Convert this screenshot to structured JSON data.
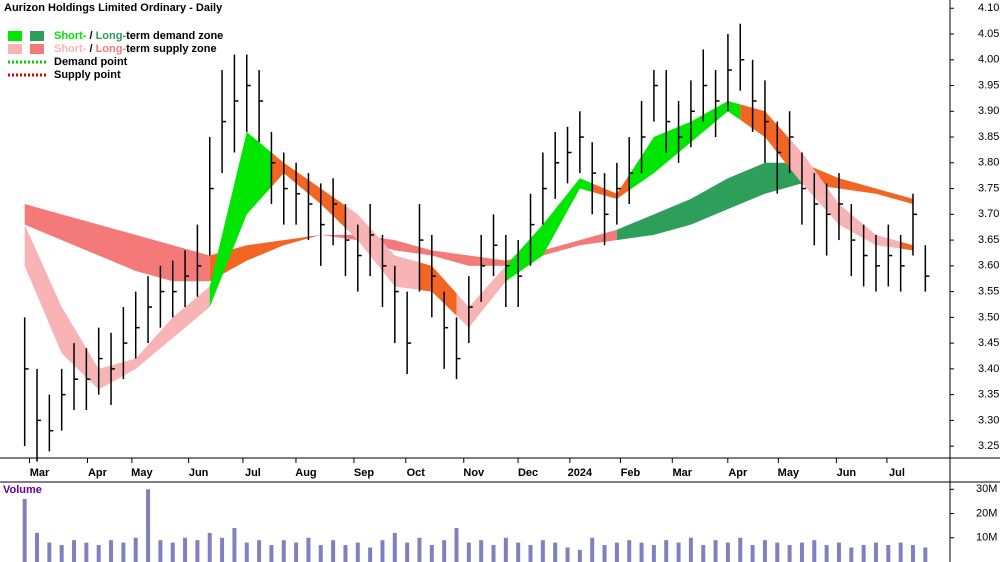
{
  "chart_data": {
    "type": "ohlc",
    "title": "Aurizon Holdings Limited Ordinary - Daily",
    "legend": [
      {
        "parts": [
          "Short-",
          " / ",
          "Long-",
          "term demand zone"
        ],
        "colors": [
          "#00e600",
          "#2e9e5b"
        ],
        "style": "box"
      },
      {
        "parts": [
          "Short-",
          " / ",
          "Long-",
          "term supply zone"
        ],
        "colors": [
          "#f8b4b4",
          "#f47a7a"
        ],
        "style": "box"
      },
      {
        "parts": [
          "Demand point"
        ],
        "colors": [
          "#00cc00"
        ],
        "style": "dots"
      },
      {
        "parts": [
          "Supply point"
        ],
        "colors": [
          "#dd0000"
        ],
        "style": "dots"
      }
    ],
    "xlim": [
      -2,
      75
    ],
    "xticks": [
      {
        "value": 1.2,
        "label": "Mar"
      },
      {
        "value": 5.9,
        "label": "Apr"
      },
      {
        "value": 9.5,
        "label": "May"
      },
      {
        "value": 14.1,
        "label": "Jun"
      },
      {
        "value": 18.5,
        "label": "Jul"
      },
      {
        "value": 22.8,
        "label": "Aug"
      },
      {
        "value": 27.5,
        "label": "Sep"
      },
      {
        "value": 31.7,
        "label": "Oct"
      },
      {
        "value": 36.4,
        "label": "Nov"
      },
      {
        "value": 40.8,
        "label": "Dec"
      },
      {
        "value": 45.0,
        "label": "2024"
      },
      {
        "value": 49.1,
        "label": "Feb"
      },
      {
        "value": 53.3,
        "label": "Mar"
      },
      {
        "value": 57.8,
        "label": "Apr"
      },
      {
        "value": 61.9,
        "label": "May"
      },
      {
        "value": 66.6,
        "label": "Jun"
      },
      {
        "value": 70.7,
        "label": "Jul"
      }
    ],
    "ylim": [
      3.227,
      4.116
    ],
    "yticks": [
      {
        "value": 4.1,
        "label": "4.10"
      },
      4.05,
      {
        "value": 4.0,
        "label": "4.00"
      },
      3.95,
      {
        "value": 3.9,
        "label": "3.90"
      },
      3.85,
      {
        "value": 3.8,
        "label": "3.80"
      },
      3.75,
      {
        "value": 3.7,
        "label": "3.70"
      },
      3.65,
      {
        "value": 3.6,
        "label": "3.60"
      },
      3.55,
      {
        "value": 3.5,
        "label": "3.50"
      },
      3.45,
      {
        "value": 3.4,
        "label": "3.40"
      },
      3.35,
      {
        "value": 3.3,
        "label": "3.30"
      },
      3.25
    ],
    "bar_color": "#000000",
    "high": [
      3.5,
      3.4,
      3.35,
      3.4,
      3.45,
      3.44,
      3.48,
      3.47,
      3.52,
      3.55,
      3.58,
      3.6,
      3.61,
      3.63,
      3.68,
      3.85,
      3.98,
      4.01,
      4.01,
      3.98,
      3.86,
      3.82,
      3.8,
      3.78,
      3.76,
      3.77,
      3.72,
      3.68,
      3.72,
      3.66,
      3.6,
      3.55,
      3.72,
      3.66,
      3.55,
      3.5,
      3.58,
      3.66,
      3.7,
      3.66,
      3.65,
      3.74,
      3.82,
      3.86,
      3.87,
      3.9,
      3.84,
      3.78,
      3.8,
      3.85,
      3.92,
      3.98,
      3.98,
      3.92,
      3.96,
      4.02,
      3.98,
      4.05,
      4.07,
      4.0,
      3.96,
      3.88,
      3.9,
      3.82,
      3.78,
      3.76,
      3.78,
      3.72,
      3.68,
      3.66,
      3.68,
      3.66,
      3.74,
      3.64
    ],
    "low": [
      3.25,
      3.22,
      3.24,
      3.28,
      3.32,
      3.32,
      3.35,
      3.33,
      3.38,
      3.42,
      3.45,
      3.48,
      3.5,
      3.52,
      3.54,
      3.62,
      3.78,
      3.82,
      3.86,
      3.84,
      3.72,
      3.68,
      3.68,
      3.65,
      3.6,
      3.64,
      3.58,
      3.55,
      3.58,
      3.52,
      3.45,
      3.39,
      3.55,
      3.5,
      3.4,
      3.38,
      3.45,
      3.53,
      3.58,
      3.52,
      3.52,
      3.6,
      3.68,
      3.73,
      3.76,
      3.78,
      3.7,
      3.64,
      3.68,
      3.72,
      3.78,
      3.88,
      3.82,
      3.8,
      3.83,
      3.88,
      3.85,
      3.9,
      3.94,
      3.86,
      3.8,
      3.74,
      3.78,
      3.68,
      3.64,
      3.62,
      3.65,
      3.58,
      3.56,
      3.55,
      3.56,
      3.55,
      3.62,
      3.55
    ],
    "close": [
      3.4,
      3.3,
      3.28,
      3.35,
      3.38,
      3.38,
      3.42,
      3.4,
      3.45,
      3.48,
      3.52,
      3.55,
      3.55,
      3.58,
      3.6,
      3.75,
      3.88,
      3.92,
      3.95,
      3.92,
      3.8,
      3.75,
      3.74,
      3.72,
      3.68,
      3.72,
      3.65,
      3.62,
      3.66,
      3.6,
      3.55,
      3.45,
      3.65,
      3.58,
      3.48,
      3.42,
      3.52,
      3.6,
      3.64,
      3.6,
      3.58,
      3.68,
      3.75,
      3.8,
      3.82,
      3.85,
      3.78,
      3.7,
      3.75,
      3.78,
      3.85,
      3.95,
      3.88,
      3.85,
      3.9,
      3.95,
      3.92,
      3.98,
      4.0,
      3.92,
      3.88,
      3.82,
      3.85,
      3.75,
      3.72,
      3.7,
      3.72,
      3.65,
      3.62,
      3.6,
      3.62,
      3.6,
      3.7,
      3.58
    ],
    "band_x": [
      0,
      3,
      6,
      9,
      12,
      15,
      18,
      21,
      24,
      27,
      30,
      33,
      36,
      39,
      42,
      45,
      48,
      51,
      54,
      57,
      60,
      63,
      66,
      69,
      72
    ],
    "bands": [
      {
        "upper": [
          3.72,
          3.7,
          3.68,
          3.66,
          3.64,
          3.62,
          3.64,
          3.65,
          3.66,
          3.66,
          3.65,
          3.63,
          3.62,
          3.61,
          3.63,
          3.65,
          3.67,
          3.7,
          3.73,
          3.77,
          3.8,
          3.8,
          3.77,
          3.75,
          3.73
        ],
        "lower": [
          3.68,
          3.65,
          3.62,
          3.59,
          3.57,
          3.57,
          3.61,
          3.64,
          3.66,
          3.65,
          3.63,
          3.62,
          3.6,
          3.6,
          3.62,
          3.64,
          3.65,
          3.66,
          3.68,
          3.71,
          3.74,
          3.76,
          3.75,
          3.74,
          3.72
        ],
        "segments": [
          {
            "from": 0,
            "to": 15,
            "color": "#f47a7a"
          },
          {
            "from": 15,
            "to": 24,
            "color": "#f26522"
          },
          {
            "from": 24,
            "to": 48,
            "color": "#f47a7a"
          },
          {
            "from": 48,
            "to": 63,
            "color": "#2e9e5b"
          },
          {
            "from": 63,
            "to": 72,
            "color": "#f26522"
          }
        ]
      },
      {
        "upper": [
          3.68,
          3.52,
          3.4,
          3.42,
          3.5,
          3.56,
          3.86,
          3.8,
          3.75,
          3.7,
          3.62,
          3.6,
          3.52,
          3.6,
          3.68,
          3.77,
          3.74,
          3.85,
          3.88,
          3.92,
          3.9,
          3.82,
          3.72,
          3.66,
          3.64
        ],
        "lower": [
          3.6,
          3.43,
          3.36,
          3.4,
          3.46,
          3.52,
          3.7,
          3.78,
          3.72,
          3.65,
          3.56,
          3.55,
          3.48,
          3.57,
          3.62,
          3.75,
          3.73,
          3.78,
          3.84,
          3.9,
          3.85,
          3.76,
          3.68,
          3.64,
          3.63
        ],
        "segments": [
          {
            "from": 0,
            "to": 15,
            "color": "#f8b4b4"
          },
          {
            "from": 15,
            "to": 20,
            "color": "#00e600"
          },
          {
            "from": 20,
            "to": 26,
            "color": "#f26522"
          },
          {
            "from": 26,
            "to": 32,
            "color": "#f8b4b4"
          },
          {
            "from": 32,
            "to": 35,
            "color": "#f26522"
          },
          {
            "from": 35,
            "to": 39,
            "color": "#f8b4b4"
          },
          {
            "from": 39,
            "to": 46,
            "color": "#00e600"
          },
          {
            "from": 46,
            "to": 49,
            "color": "#f26522"
          },
          {
            "from": 49,
            "to": 58,
            "color": "#00e600"
          },
          {
            "from": 58,
            "to": 62,
            "color": "#f26522"
          },
          {
            "from": 62,
            "to": 71,
            "color": "#f8b4b4"
          },
          {
            "from": 71,
            "to": 72,
            "color": "#f26522"
          }
        ]
      }
    ],
    "volume": {
      "label": "Volume",
      "color": "#8080c0",
      "values": [
        26,
        12,
        8,
        7,
        9,
        8,
        7,
        9,
        8,
        10,
        30,
        9,
        8,
        10,
        9,
        12,
        10,
        14,
        8,
        9,
        7,
        9,
        8,
        10,
        7,
        9,
        7,
        8,
        6,
        9,
        12,
        8,
        10,
        7,
        9,
        14,
        8,
        9,
        7,
        10,
        8,
        7,
        9,
        8,
        6,
        5,
        10,
        7,
        8,
        9,
        8,
        7,
        9,
        8,
        10,
        7,
        9,
        8,
        10,
        7,
        9,
        8,
        7,
        8,
        9,
        7,
        8,
        6,
        7,
        8,
        7,
        8,
        7,
        6
      ],
      "ylim": [
        0,
        33
      ],
      "yticks": [
        {
          "value": 30,
          "label": "30M"
        },
        {
          "value": 20,
          "label": "20M"
        },
        {
          "value": 10,
          "label": "10M"
        }
      ]
    }
  }
}
